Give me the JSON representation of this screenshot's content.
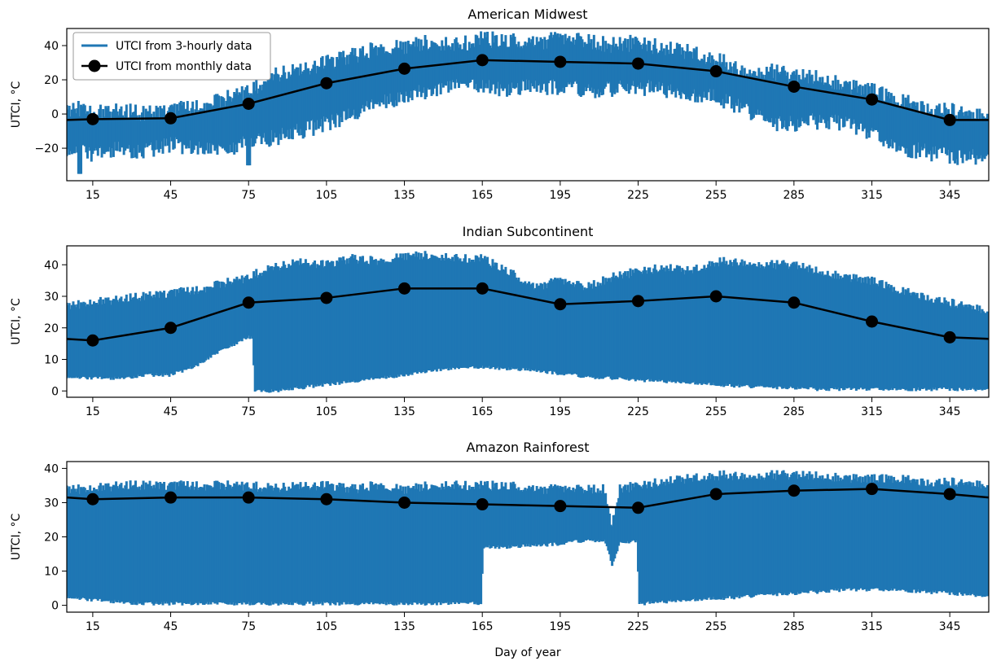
{
  "figure": {
    "xlabel": "Day of year",
    "xlim": [
      5,
      360
    ],
    "xticks": [
      15,
      45,
      75,
      105,
      135,
      165,
      195,
      225,
      255,
      285,
      315,
      345
    ]
  },
  "colors": {
    "band": "#1f77b4",
    "monthly": "#000000"
  },
  "legend": {
    "placement": "upper-left of first panel",
    "entries": [
      "UTCI from 3-hourly data",
      "UTCI from monthly data"
    ]
  },
  "chart_data": [
    {
      "type": "line",
      "title": "American Midwest",
      "ylabel": "UTCI, °C",
      "ylim": [
        -39,
        50
      ],
      "yticks": [
        -20,
        0,
        20,
        40
      ],
      "series": [
        {
          "name": "UTCI from 3-hourly data",
          "kind": "range-band",
          "days": [
            5,
            12,
            15,
            25,
            35,
            45,
            55,
            65,
            75,
            85,
            95,
            105,
            115,
            125,
            135,
            145,
            155,
            165,
            175,
            185,
            195,
            205,
            215,
            225,
            235,
            245,
            255,
            265,
            275,
            285,
            295,
            305,
            315,
            325,
            335,
            345,
            355,
            360
          ],
          "upper": [
            2,
            4,
            0,
            2,
            0,
            2,
            4,
            8,
            14,
            22,
            26,
            30,
            34,
            38,
            40,
            42,
            40,
            44,
            43,
            42,
            44,
            43,
            40,
            42,
            38,
            36,
            32,
            26,
            25,
            22,
            22,
            16,
            14,
            8,
            4,
            2,
            -2,
            0
          ],
          "lower": [
            -25,
            -22,
            -25,
            -20,
            -22,
            -18,
            -20,
            -22,
            -16,
            -14,
            -10,
            -6,
            0,
            6,
            10,
            14,
            16,
            16,
            14,
            16,
            16,
            14,
            14,
            16,
            14,
            10,
            10,
            4,
            -6,
            -6,
            -4,
            -6,
            -12,
            -20,
            -22,
            -25,
            -25,
            -25
          ],
          "extreme_low": [
            {
              "day": 10,
              "value": -35
            },
            {
              "day": 75,
              "value": -30
            }
          ]
        },
        {
          "name": "UTCI from monthly data",
          "kind": "line-markers",
          "x": [
            15,
            45,
            75,
            105,
            135,
            165,
            195,
            225,
            255,
            285,
            315,
            345
          ],
          "y": [
            -3,
            -2.5,
            6,
            18,
            26.5,
            31.5,
            30.5,
            29.5,
            25,
            16,
            8.5,
            -3.5
          ],
          "edge_y": -3.5
        }
      ]
    },
    {
      "type": "line",
      "title": "Indian Subcontinent",
      "ylabel": "UTCI, °C",
      "ylim": [
        -2,
        46
      ],
      "yticks": [
        0,
        10,
        20,
        30,
        40
      ],
      "series": [
        {
          "name": "UTCI from 3-hourly data",
          "kind": "range-band",
          "days": [
            5,
            15,
            25,
            35,
            45,
            55,
            65,
            75,
            76.9,
            77.1,
            85,
            95,
            105,
            115,
            125,
            135,
            145,
            155,
            165,
            175,
            185,
            195,
            205,
            215,
            225,
            235,
            245,
            255,
            265,
            275,
            285,
            295,
            305,
            315,
            325,
            335,
            345,
            355,
            360
          ],
          "upper": [
            27,
            28,
            29,
            30,
            31,
            32,
            34,
            36,
            37,
            37,
            39,
            41,
            40,
            42,
            41,
            43,
            43,
            42,
            42,
            38,
            33,
            35,
            33,
            36,
            38,
            39,
            38,
            41,
            41,
            40,
            40,
            38,
            36,
            35,
            32,
            30,
            28,
            26,
            25
          ],
          "lower": [
            4,
            4,
            4,
            5,
            5,
            8,
            13,
            17,
            17,
            0,
            0,
            1,
            2,
            3,
            4,
            5,
            6.5,
            7,
            7.5,
            7,
            6.5,
            5.5,
            4.5,
            4,
            3.5,
            3,
            2.5,
            2,
            1.5,
            1,
            1,
            0.5,
            0.5,
            0.5,
            0.5,
            0.5,
            0.5,
            0.5,
            0.5
          ]
        },
        {
          "name": "UTCI from monthly data",
          "kind": "line-markers",
          "x": [
            15,
            45,
            75,
            105,
            135,
            165,
            195,
            225,
            255,
            285,
            315,
            345
          ],
          "y": [
            16,
            20,
            28,
            29.5,
            32.5,
            32.5,
            27.5,
            28.5,
            30,
            28,
            22,
            17
          ],
          "edge_y": 16.5
        }
      ]
    },
    {
      "type": "line",
      "title": "Amazon Rainforest",
      "ylabel": "UTCI, °C",
      "ylim": [
        -2,
        42
      ],
      "yticks": [
        0,
        10,
        20,
        30,
        40
      ],
      "series": [
        {
          "name": "UTCI from 3-hourly data",
          "kind": "range-band",
          "days": [
            5,
            15,
            25,
            35,
            45,
            55,
            65,
            75,
            85,
            95,
            105,
            115,
            125,
            135,
            145,
            155,
            164.9,
            165.1,
            175,
            185,
            195,
            205,
            212,
            215,
            218,
            224.9,
            225.1,
            235,
            245,
            255,
            265,
            275,
            285,
            295,
            305,
            315,
            325,
            335,
            345,
            355,
            360
          ],
          "upper": [
            34,
            34,
            35,
            35,
            35,
            35,
            35,
            35,
            34,
            35,
            35,
            34,
            35,
            34,
            35,
            35,
            35,
            35,
            35,
            34,
            34,
            34,
            34,
            23,
            34,
            35,
            35,
            36,
            37,
            38,
            38,
            38,
            38,
            38,
            37,
            37,
            37,
            36,
            36,
            35,
            35
          ],
          "lower": [
            2,
            1.5,
            1,
            0.5,
            0.5,
            0.5,
            0.5,
            0.5,
            0.5,
            0.5,
            0.5,
            0.5,
            0.5,
            0.5,
            0.5,
            0.5,
            0.5,
            17,
            17,
            17.5,
            18,
            19,
            19,
            12,
            18,
            19,
            0.5,
            1,
            1.5,
            2,
            2.5,
            3,
            3.5,
            4,
            4.5,
            4.5,
            4.5,
            4,
            3.5,
            3,
            2.5
          ]
        },
        {
          "name": "UTCI from monthly data",
          "kind": "line-markers",
          "x": [
            15,
            45,
            75,
            105,
            135,
            165,
            195,
            225,
            255,
            285,
            315,
            345
          ],
          "y": [
            31,
            31.5,
            31.5,
            31,
            30,
            29.5,
            29,
            28.5,
            32.5,
            33.5,
            34,
            32.5
          ],
          "edge_y": 31.5
        }
      ]
    }
  ]
}
